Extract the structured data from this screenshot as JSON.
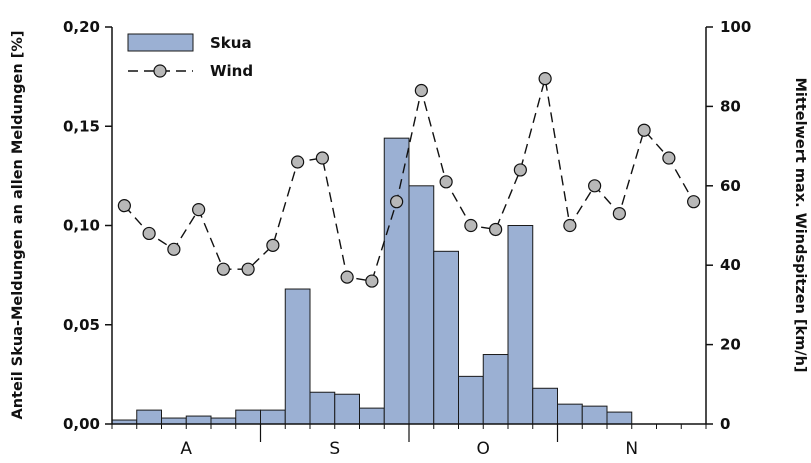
{
  "chart_data": {
    "type": "bar+line",
    "months": [
      "A",
      "S",
      "O",
      "N"
    ],
    "series": [
      {
        "name": "Skua",
        "type": "bar",
        "axis": "left",
        "values": [
          0.002,
          0.007,
          0.003,
          0.004,
          0.003,
          0.007,
          0.007,
          0.068,
          0.016,
          0.015,
          0.008,
          0.144,
          0.12,
          0.087,
          0.024,
          0.035,
          0.1,
          0.018,
          0.01,
          0.009,
          0.006,
          0,
          0,
          0
        ]
      },
      {
        "name": "Wind",
        "type": "line",
        "axis": "right",
        "values": [
          55,
          48,
          44,
          54,
          39,
          39,
          45,
          66,
          67,
          37,
          36,
          56,
          84,
          61,
          50,
          49,
          64,
          87,
          50,
          60,
          53,
          74,
          67,
          56
        ]
      }
    ],
    "ylabel_left": "Anteil Skua-Meldungen an allen Meldungen [%]",
    "ylabel_right": "Mittelwert max. Windspitzen [km/h]",
    "yticks_left": [
      "0,00",
      "0,05",
      "0,10",
      "0,15",
      "0,20"
    ],
    "yticks_right": [
      "0",
      "20",
      "40",
      "60",
      "80",
      "100"
    ],
    "ylim_left": [
      0,
      0.2
    ],
    "ylim_right": [
      0,
      100
    ],
    "legend_position": "top-left",
    "colors": {
      "bar_fill": "#9bb0d3",
      "bar_stroke": "#1a1a1a",
      "line": "#111111",
      "marker_fill": "#b8b8b8"
    }
  }
}
